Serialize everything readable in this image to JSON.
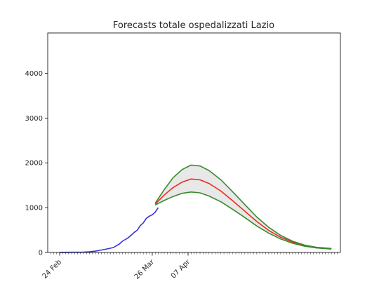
{
  "chart_data": {
    "type": "line",
    "title": "Forecasts totale ospedalizzati Lazio",
    "xlabel": "",
    "ylabel": "",
    "x_range": [
      "2020-02-20",
      "2020-05-28"
    ],
    "ylim": [
      0,
      4900
    ],
    "y_ticks": [
      0,
      1000,
      2000,
      3000,
      4000
    ],
    "x_ticks": [
      {
        "date": "2020-02-24",
        "label": "24 Feb"
      },
      {
        "date": "2020-03-26",
        "label": "26 Mar"
      },
      {
        "date": "2020-04-07",
        "label": "07 Apr"
      }
    ],
    "grid": false,
    "legend": "none",
    "series": [
      {
        "color": "#3333dd",
        "role": "observed",
        "points": [
          [
            "2020-02-24",
            2
          ],
          [
            "2020-02-26",
            3
          ],
          [
            "2020-02-28",
            4
          ],
          [
            "2020-03-01",
            5
          ],
          [
            "2020-03-03",
            7
          ],
          [
            "2020-03-05",
            15
          ],
          [
            "2020-03-07",
            30
          ],
          [
            "2020-03-09",
            55
          ],
          [
            "2020-03-11",
            80
          ],
          [
            "2020-03-13",
            110
          ],
          [
            "2020-03-14",
            150
          ],
          [
            "2020-03-15",
            190
          ],
          [
            "2020-03-16",
            250
          ],
          [
            "2020-03-17",
            290
          ],
          [
            "2020-03-18",
            330
          ],
          [
            "2020-03-19",
            390
          ],
          [
            "2020-03-20",
            450
          ],
          [
            "2020-03-21",
            500
          ],
          [
            "2020-03-22",
            600
          ],
          [
            "2020-03-23",
            660
          ],
          [
            "2020-03-24",
            760
          ],
          [
            "2020-03-25",
            810
          ],
          [
            "2020-03-26",
            840
          ],
          [
            "2020-03-27",
            900
          ],
          [
            "2020-03-28",
            1000
          ]
        ]
      },
      {
        "color": "#ee2a1f",
        "role": "forecast-central",
        "points": [
          [
            "2020-03-27",
            1080
          ],
          [
            "2020-03-30",
            1280
          ],
          [
            "2020-04-02",
            1450
          ],
          [
            "2020-04-05",
            1570
          ],
          [
            "2020-04-08",
            1640
          ],
          [
            "2020-04-11",
            1620
          ],
          [
            "2020-04-14",
            1540
          ],
          [
            "2020-04-18",
            1370
          ],
          [
            "2020-04-22",
            1150
          ],
          [
            "2020-04-26",
            920
          ],
          [
            "2020-04-30",
            690
          ],
          [
            "2020-05-04",
            490
          ],
          [
            "2020-05-08",
            340
          ],
          [
            "2020-05-12",
            230
          ],
          [
            "2020-05-16",
            150
          ],
          [
            "2020-05-20",
            105
          ],
          [
            "2020-05-25",
            80
          ]
        ]
      },
      {
        "color": "#3a8a2e",
        "role": "forecast-upper",
        "points": [
          [
            "2020-03-27",
            1100
          ],
          [
            "2020-03-30",
            1400
          ],
          [
            "2020-04-02",
            1670
          ],
          [
            "2020-04-05",
            1850
          ],
          [
            "2020-04-08",
            1950
          ],
          [
            "2020-04-11",
            1930
          ],
          [
            "2020-04-14",
            1830
          ],
          [
            "2020-04-18",
            1620
          ],
          [
            "2020-04-22",
            1350
          ],
          [
            "2020-04-26",
            1070
          ],
          [
            "2020-04-30",
            790
          ],
          [
            "2020-05-04",
            560
          ],
          [
            "2020-05-08",
            380
          ],
          [
            "2020-05-12",
            250
          ],
          [
            "2020-05-16",
            165
          ],
          [
            "2020-05-20",
            115
          ],
          [
            "2020-05-25",
            90
          ]
        ]
      },
      {
        "color": "#3a8a2e",
        "role": "forecast-lower",
        "points": [
          [
            "2020-03-27",
            1060
          ],
          [
            "2020-03-30",
            1160
          ],
          [
            "2020-04-02",
            1250
          ],
          [
            "2020-04-05",
            1320
          ],
          [
            "2020-04-08",
            1350
          ],
          [
            "2020-04-11",
            1330
          ],
          [
            "2020-04-14",
            1260
          ],
          [
            "2020-04-18",
            1130
          ],
          [
            "2020-04-22",
            960
          ],
          [
            "2020-04-26",
            780
          ],
          [
            "2020-04-30",
            590
          ],
          [
            "2020-05-04",
            430
          ],
          [
            "2020-05-08",
            300
          ],
          [
            "2020-05-12",
            205
          ],
          [
            "2020-05-16",
            140
          ],
          [
            "2020-05-20",
            100
          ],
          [
            "2020-05-25",
            75
          ]
        ]
      }
    ],
    "band_fill": "#e8e8e8"
  }
}
